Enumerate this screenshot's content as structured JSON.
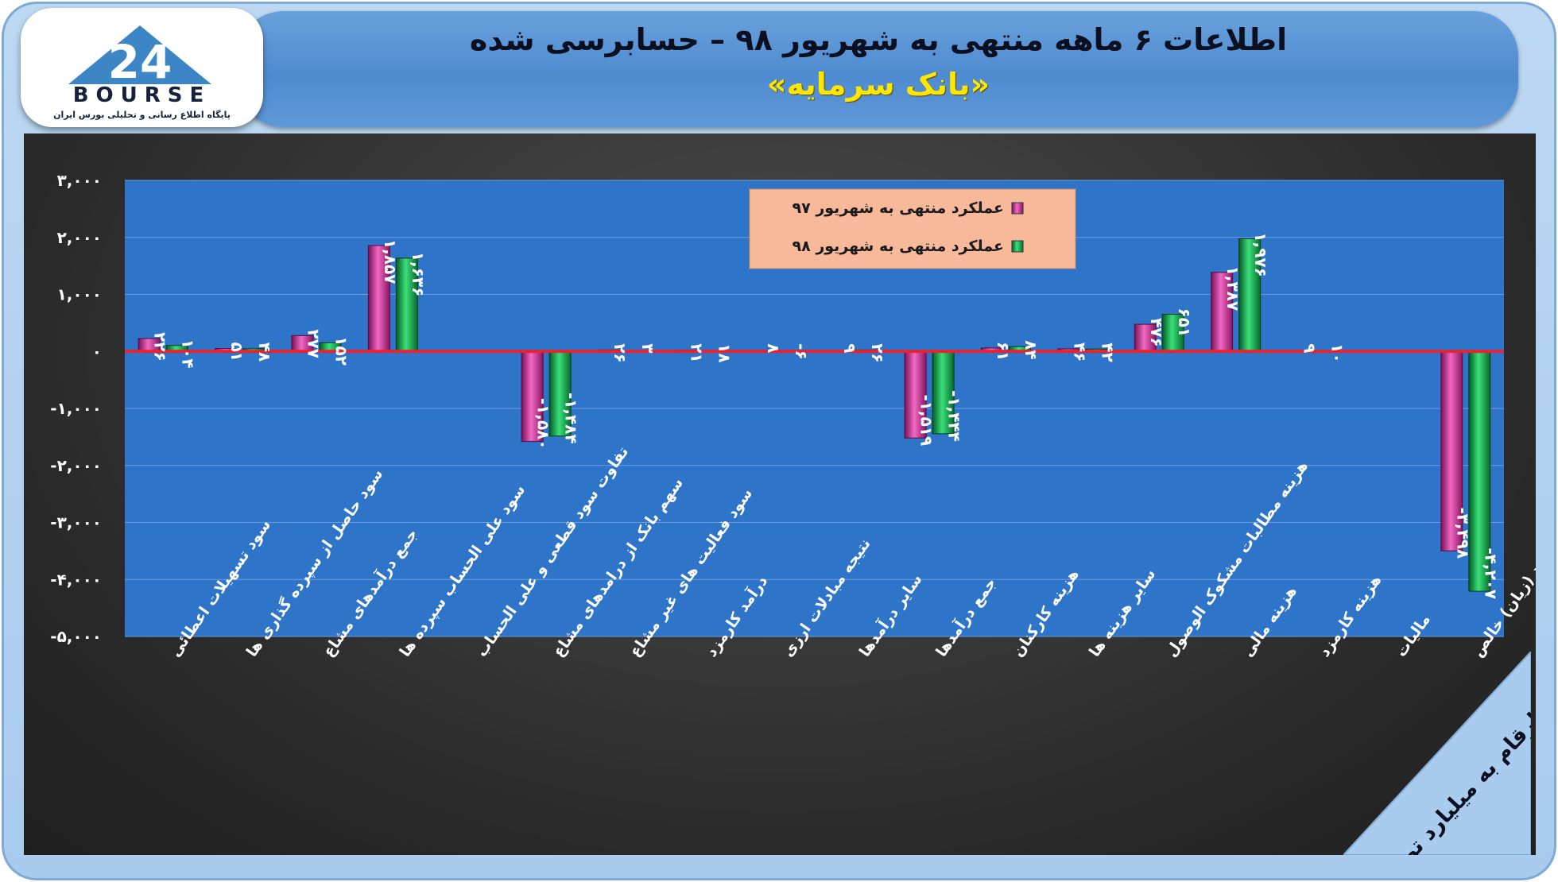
{
  "header": {
    "title": "اطلاعات ۶ ماهه منتهی به شهریور ۹۸ – حسابرسی شده",
    "subtitle": "«بانک سرمایه»"
  },
  "logo": {
    "word": "BOURSE",
    "mark": "24",
    "tagline": "پایگاه اطلاع رسانی و تحلیلی بورس ایران"
  },
  "unit_label": "ارقام به میلیارد تومان",
  "colors": {
    "series_97": "#d6249b",
    "series_98": "#0fa34a",
    "plot_bg": "#2e74c9",
    "zero_line": "#e8222e",
    "legend_bg": "#f7b99a"
  },
  "chart_data": {
    "type": "bar",
    "categories": [
      "سود تسهیلات اعطائی",
      "سود حاصل از سپرده گذاری ها",
      "جمع درآمدهای مشاع",
      "سود علی الحساب سپرده ها",
      "تفاوت سود قطعی و علی الحساب",
      "سهم بانک از درامدهای مشاع",
      "سود فعالیت های غیر مشاع",
      "درآمد کارمزد",
      "نتیجه مبادلات ارزی",
      "سایر درآمدها",
      "جمع درآمدها",
      "هزینه کارکنان",
      "سایر هزینه ها",
      "هزینه مطالبات مشکوک الوصول",
      "هزینه مالی",
      "هزینه کارمزد",
      "مالیات",
      "سود (زیان) خالص"
    ],
    "series": [
      {
        "name": "عملکرد منتهی به شهریور ۹۷",
        "values": [
          226,
          51,
          277,
          1857,
          null,
          -1580,
          26,
          21,
          8,
          9,
          -1519,
          61,
          46,
          476,
          1387,
          9,
          null,
          -3498
        ],
        "labels": [
          "۲۲۶",
          "۵۱",
          "۲۷۷",
          "۱,۸۵۷",
          "",
          "-۱,۵۸۰",
          "۲۶",
          "۲۱",
          "۸",
          "۹",
          "-۱,۵۱۹",
          "۶۱",
          "۴۶",
          "۴۷۶",
          "۱,۳۸۷",
          "۹",
          "",
          "-۳,۴۹۸"
        ]
      },
      {
        "name": "عملکرد منتهی به شهریور ۹۸",
        "values": [
          104,
          48,
          152,
          1636,
          null,
          -1484,
          3,
          18,
          -6,
          26,
          -1444,
          84,
          42,
          651,
          1976,
          10,
          null,
          -4207
        ],
        "labels": [
          "۱۰۴",
          "۴۸",
          "۱۵۲",
          "۱,۶۳۶",
          "",
          "-۱,۴۸۴",
          "۳",
          "۱۸",
          "-۶",
          "۲۶",
          "-۱,۴۴۴",
          "۸۴",
          "۴۲",
          "۶۵۱",
          "۱,۹۷۶",
          "۱۰",
          "",
          "-۴,۲۰۷"
        ]
      }
    ],
    "y_ticks": [
      3000,
      2000,
      1000,
      0,
      -1000,
      -2000,
      -3000,
      -4000,
      -5000
    ],
    "y_tick_labels": [
      "۳,۰۰۰",
      "۲,۰۰۰",
      "۱,۰۰۰",
      "۰",
      "-۱,۰۰۰",
      "-۲,۰۰۰",
      "-۳,۰۰۰",
      "-۴,۰۰۰",
      "-۵,۰۰۰"
    ],
    "ylim": [
      -5000,
      3000
    ],
    "grid": true,
    "legend_position": "top-center"
  }
}
